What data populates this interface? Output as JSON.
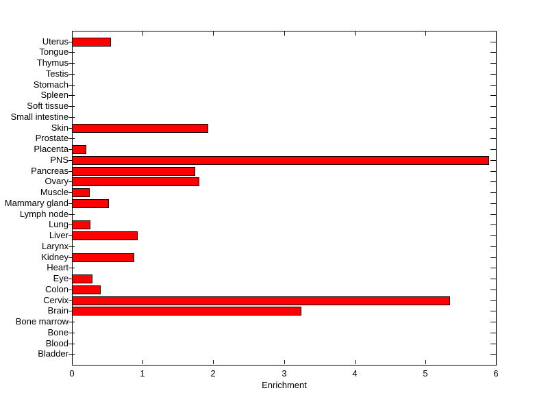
{
  "chart_data": {
    "type": "bar",
    "orientation": "horizontal",
    "title": "",
    "xlabel": "Enrichment",
    "ylabel": "",
    "grid": false,
    "legend_position": "none",
    "xlim": [
      0,
      6
    ],
    "xticks": [
      0,
      1,
      2,
      3,
      4,
      5,
      6
    ],
    "bar_color": "#ff0000",
    "bar_edge_color": "#000000",
    "axis_color": "#000000",
    "background_color": "#ffffff",
    "categories_top_to_bottom": [
      "Uterus",
      "Tongue",
      "Thymus",
      "Testis",
      "Stomach",
      "Spleen",
      "Soft tissue",
      "Small intestine",
      "Skin",
      "Prostate",
      "Placenta",
      "PNS",
      "Pancreas",
      "Ovary",
      "Muscle",
      "Mammary gland",
      "Lymph node",
      "Lung",
      "Liver",
      "Larynx",
      "Kidney",
      "Heart",
      "Eye",
      "Colon",
      "Cervix",
      "Brain",
      "Bone marrow",
      "Bone",
      "Blood",
      "Bladder"
    ],
    "values": [
      0.55,
      0,
      0,
      0,
      0,
      0,
      0,
      0,
      1.93,
      0,
      0.2,
      5.9,
      1.74,
      1.8,
      0.25,
      0.52,
      0,
      0.26,
      0.93,
      0,
      0.88,
      0,
      0.29,
      0.41,
      5.35,
      3.25,
      0,
      0,
      0,
      0
    ]
  }
}
